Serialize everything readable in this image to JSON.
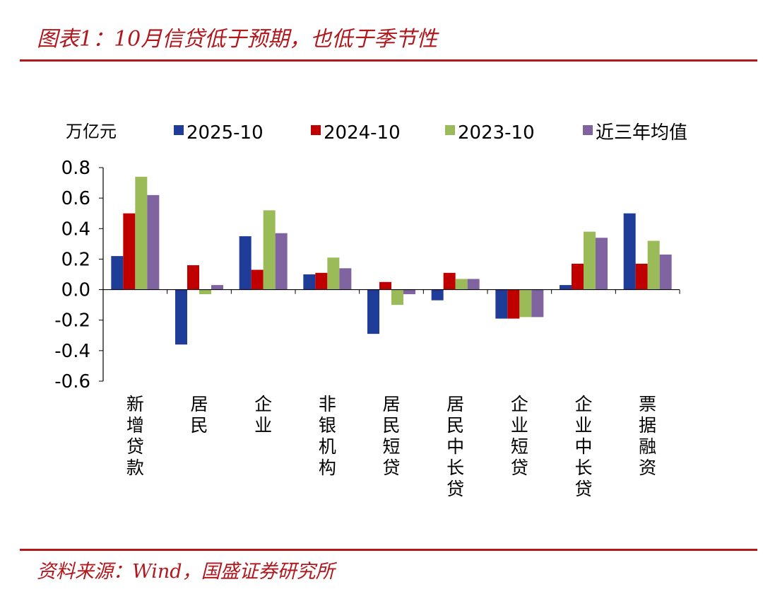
{
  "header": {
    "title": "图表1：10月信贷低于预期，也低于季节性"
  },
  "footer": {
    "source": "资料来源：Wind，国盛证券研究所"
  },
  "chart_data": {
    "type": "bar",
    "ylabel": "万亿元",
    "ylim": [
      -0.6,
      0.8
    ],
    "yticks": [
      "0.8",
      "0.6",
      "0.4",
      "0.2",
      "0.0",
      "-0.2",
      "-0.4",
      "-0.6"
    ],
    "grid": false,
    "legend_position": "top",
    "categories": [
      "新增贷款",
      "居民",
      "企业",
      "非银机构",
      "居民短贷",
      "居民中长贷",
      "企业短贷",
      "企业中长贷",
      "票据融资"
    ],
    "series": [
      {
        "name": "2025-10",
        "color": "#1f3c99",
        "values": [
          0.22,
          -0.36,
          0.35,
          0.1,
          -0.29,
          -0.07,
          -0.19,
          0.03,
          0.5
        ]
      },
      {
        "name": "2024-10",
        "color": "#c00000",
        "values": [
          0.5,
          0.16,
          0.13,
          0.11,
          0.05,
          0.11,
          -0.19,
          0.17,
          0.17
        ]
      },
      {
        "name": "2023-10",
        "color": "#9bbb59",
        "values": [
          0.74,
          -0.03,
          0.52,
          0.21,
          -0.1,
          0.07,
          -0.18,
          0.38,
          0.32
        ]
      },
      {
        "name": "近三年均值",
        "color": "#8064a2",
        "values": [
          0.62,
          0.03,
          0.37,
          0.14,
          -0.03,
          0.07,
          -0.18,
          0.34,
          0.23
        ]
      }
    ]
  }
}
